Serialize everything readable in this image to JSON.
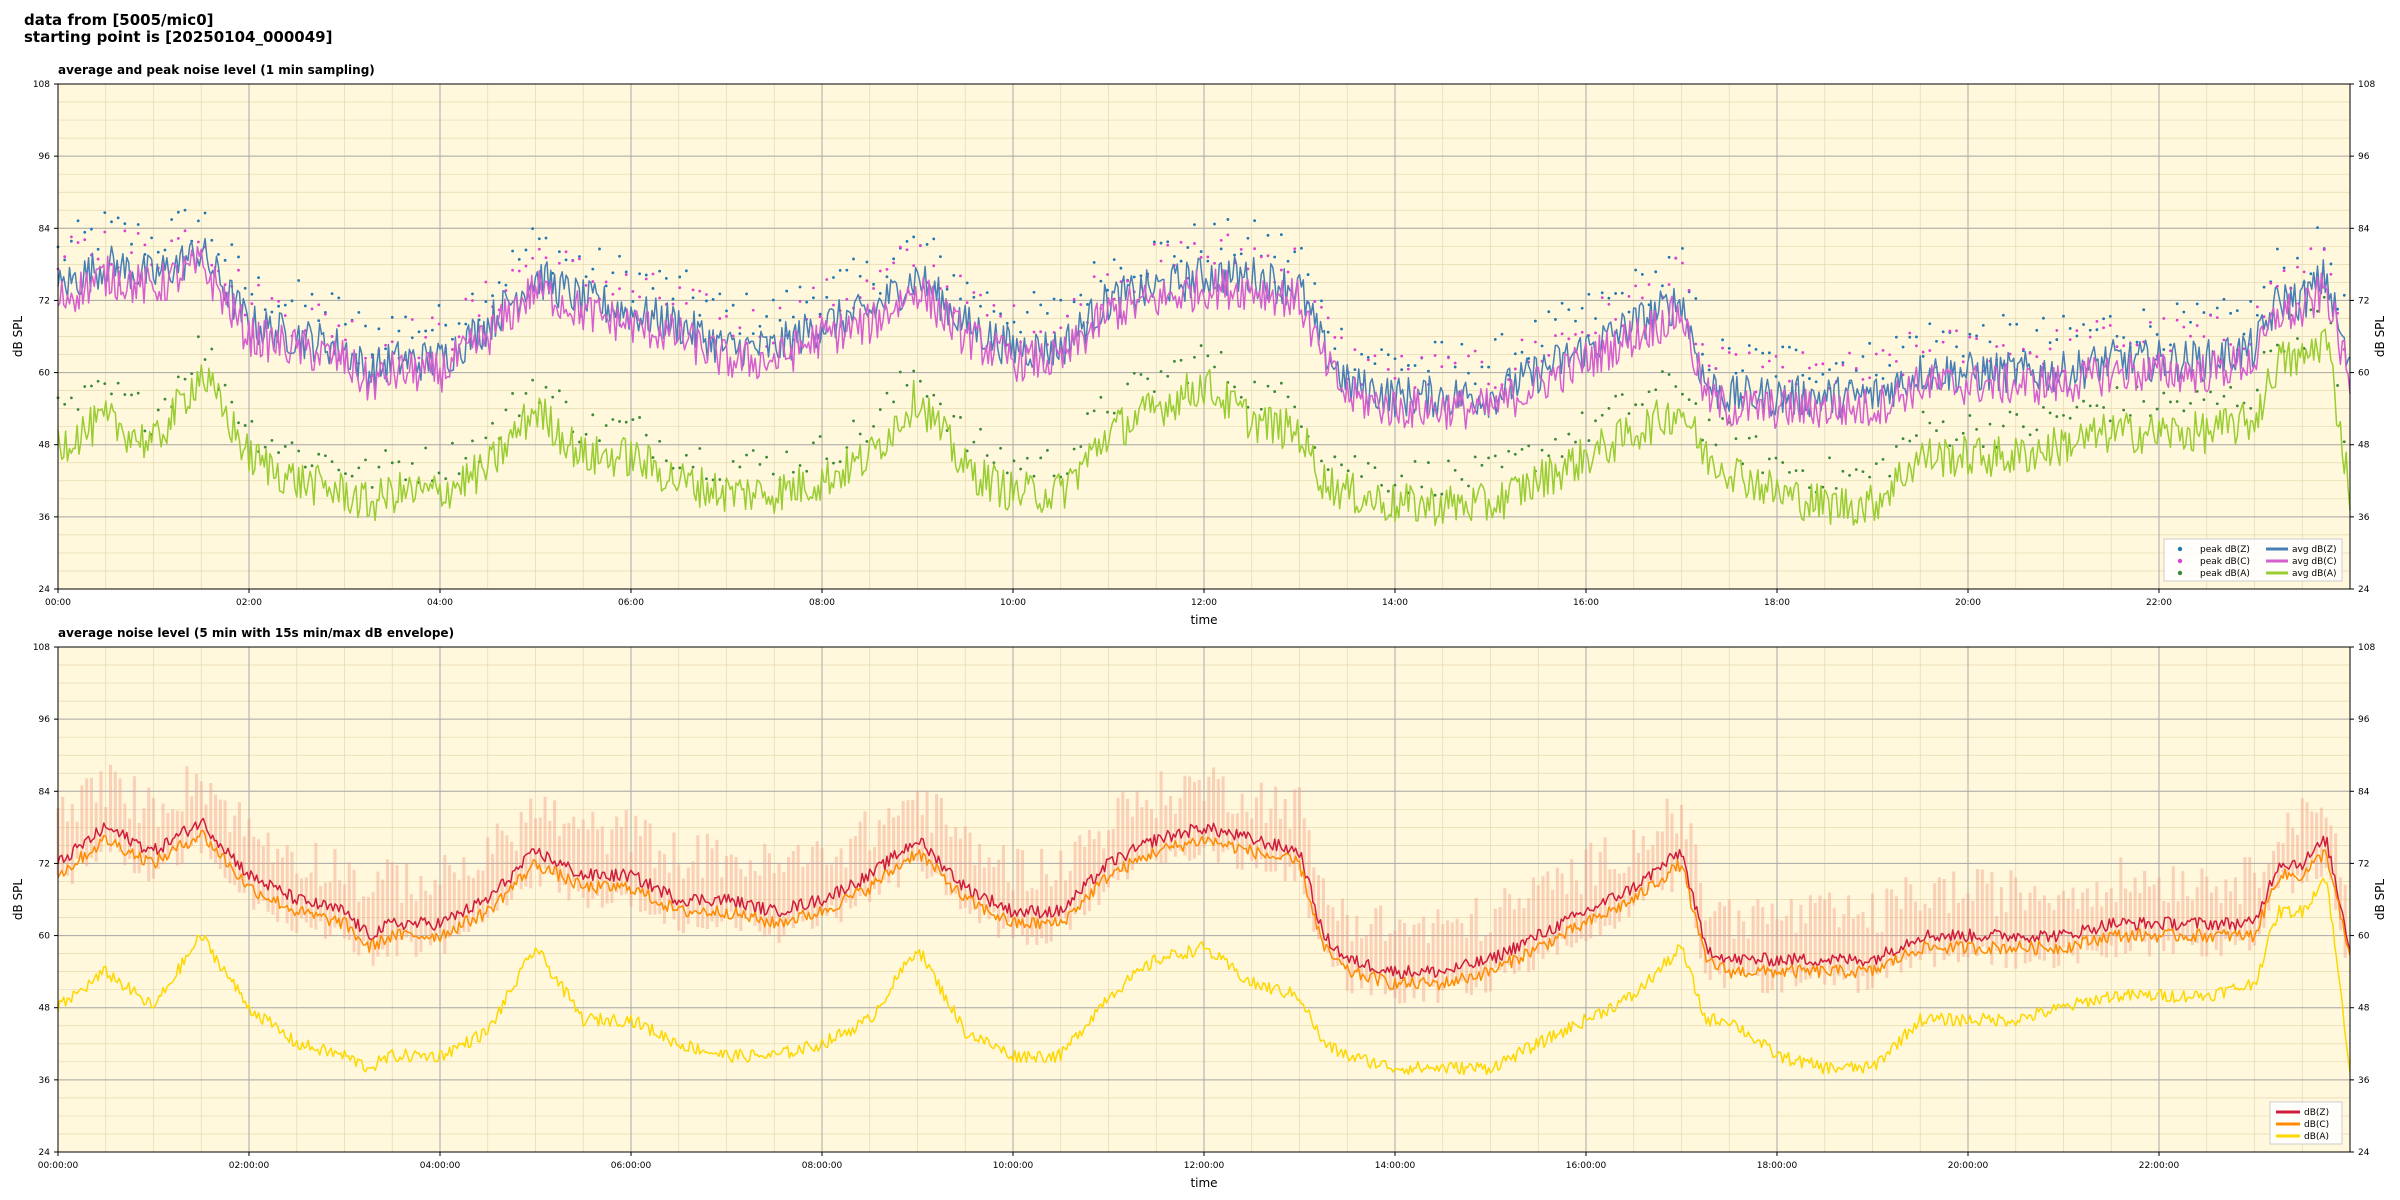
{
  "header": {
    "line1": "data from [5005/mic0]",
    "line2": "starting point is [20250104_000049]"
  },
  "chart_data": [
    {
      "type": "scatter",
      "title": "average and peak noise level (1 min sampling)",
      "xlabel": "time",
      "ylabel": "dB SPL",
      "xlim": [
        0,
        24
      ],
      "ylim": [
        24,
        108
      ],
      "x_ticks": [
        "00:00",
        "02:00",
        "04:00",
        "06:00",
        "08:00",
        "10:00",
        "12:00",
        "14:00",
        "16:00",
        "18:00",
        "20:00",
        "22:00"
      ],
      "y_ticks": [
        24,
        36,
        48,
        60,
        72,
        84,
        96,
        108
      ],
      "grid": true,
      "legend_position": "lower-right",
      "background_color": "#fff8dc",
      "series": [
        {
          "name": "peak dB(Z)",
          "kind": "points",
          "color": "#1f77b4",
          "offset_from": "avg dB(Z)",
          "offset_db": 6
        },
        {
          "name": "peak dB(C)",
          "kind": "points",
          "color": "#e040d0",
          "offset_from": "avg dB(C)",
          "offset_db": 6
        },
        {
          "name": "peak dB(A)",
          "kind": "points",
          "color": "#3a8a3a",
          "offset_from": "avg dB(A)",
          "offset_db": 5
        },
        {
          "name": "avg dB(Z)",
          "kind": "line",
          "color": "#4a7fb5",
          "x": [
            0,
            0.5,
            1,
            1.5,
            2,
            2.5,
            3,
            3.25,
            3.5,
            4,
            4.5,
            5,
            5.5,
            6,
            6.5,
            7,
            7.5,
            8,
            8.5,
            9,
            9.5,
            10,
            10.5,
            11,
            11.5,
            12,
            12.5,
            13,
            13.25,
            13.5,
            14,
            14.5,
            15,
            15.5,
            16,
            16.5,
            17,
            17.25,
            17.5,
            18,
            18.5,
            19,
            19.5,
            20,
            20.5,
            21,
            21.5,
            22,
            22.5,
            23,
            23.25,
            23.5,
            23.75,
            24
          ],
          "y": [
            74,
            78,
            76,
            80,
            68,
            66,
            64,
            60,
            62,
            62,
            68,
            76,
            72,
            70,
            68,
            64,
            64,
            68,
            70,
            76,
            68,
            64,
            64,
            72,
            74,
            76,
            76,
            74,
            64,
            58,
            56,
            56,
            56,
            60,
            64,
            68,
            72,
            58,
            56,
            56,
            56,
            56,
            60,
            60,
            60,
            60,
            62,
            62,
            62,
            64,
            72,
            72,
            76,
            60
          ]
        },
        {
          "name": "avg dB(C)",
          "kind": "line",
          "color": "#d65fd0",
          "x": [
            0,
            0.5,
            1,
            1.5,
            2,
            2.5,
            3,
            3.25,
            3.5,
            4,
            4.5,
            5,
            5.5,
            6,
            6.5,
            7,
            7.5,
            8,
            8.5,
            9,
            9.5,
            10,
            10.5,
            11,
            11.5,
            12,
            12.5,
            13,
            13.25,
            13.5,
            14,
            14.5,
            15,
            15.5,
            16,
            16.5,
            17,
            17.25,
            17.5,
            18,
            18.5,
            19,
            19.5,
            20,
            20.5,
            21,
            21.5,
            22,
            22.5,
            23,
            23.25,
            23.5,
            23.75,
            24
          ],
          "y": [
            72,
            76,
            74,
            78,
            66,
            64,
            62,
            58,
            60,
            60,
            66,
            74,
            70,
            68,
            66,
            62,
            62,
            66,
            68,
            74,
            66,
            62,
            62,
            70,
            72,
            74,
            74,
            72,
            62,
            56,
            54,
            54,
            54,
            58,
            62,
            66,
            70,
            56,
            54,
            54,
            54,
            54,
            58,
            58,
            58,
            58,
            60,
            60,
            60,
            62,
            70,
            70,
            74,
            58
          ]
        },
        {
          "name": "avg dB(A)",
          "kind": "line",
          "color": "#9acd32",
          "x": [
            0,
            0.5,
            1,
            1.5,
            2,
            2.5,
            3,
            3.25,
            3.5,
            4,
            4.5,
            5,
            5.5,
            6,
            6.5,
            7,
            7.5,
            8,
            8.5,
            9,
            9.5,
            10,
            10.5,
            11,
            11.5,
            12,
            12.5,
            13,
            13.25,
            13.5,
            14,
            14.5,
            15,
            15.5,
            16,
            16.5,
            17,
            17.25,
            17.5,
            18,
            18.5,
            19,
            19.5,
            20,
            20.5,
            21,
            21.5,
            22,
            22.5,
            23,
            23.25,
            23.5,
            23.75,
            24
          ],
          "y": [
            48,
            52,
            48,
            60,
            46,
            42,
            40,
            38,
            40,
            40,
            44,
            54,
            46,
            46,
            42,
            40,
            40,
            42,
            46,
            56,
            44,
            40,
            40,
            50,
            54,
            58,
            52,
            50,
            42,
            40,
            38,
            38,
            38,
            42,
            46,
            50,
            54,
            46,
            44,
            40,
            38,
            38,
            46,
            46,
            46,
            48,
            50,
            50,
            50,
            52,
            62,
            62,
            66,
            40
          ]
        }
      ]
    },
    {
      "type": "line",
      "title": "average noise level (5 min with 15s min/max dB envelope)",
      "xlabel": "time",
      "ylabel": "dB SPL",
      "xlim": [
        0,
        24
      ],
      "ylim": [
        24,
        108
      ],
      "x_ticks": [
        "00:00:00",
        "02:00:00",
        "04:00:00",
        "06:00:00",
        "08:00:00",
        "10:00:00",
        "12:00:00",
        "14:00:00",
        "16:00:00",
        "18:00:00",
        "20:00:00",
        "22:00:00"
      ],
      "y_ticks": [
        24,
        36,
        48,
        60,
        72,
        84,
        96,
        108
      ],
      "grid": true,
      "legend_position": "lower-right",
      "background_color": "#fff8dc",
      "envelope": {
        "color": "#f4a08a",
        "opacity": 0.45,
        "spread_db": 8
      },
      "series": [
        {
          "name": "dB(Z)",
          "color": "#d01c3c",
          "x": [
            0,
            0.5,
            1,
            1.5,
            2,
            2.5,
            3,
            3.25,
            3.5,
            4,
            4.5,
            5,
            5.5,
            6,
            6.5,
            7,
            7.5,
            8,
            8.5,
            9,
            9.5,
            10,
            10.5,
            11,
            11.5,
            12,
            12.5,
            13,
            13.25,
            13.5,
            14,
            14.5,
            15,
            15.5,
            16,
            16.5,
            17,
            17.25,
            17.5,
            18,
            18.5,
            19,
            19.5,
            20,
            20.5,
            21,
            21.5,
            22,
            22.5,
            23,
            23.25,
            23.5,
            23.75,
            24
          ],
          "y": [
            72,
            78,
            74,
            79,
            70,
            66,
            64,
            60,
            62,
            62,
            66,
            74,
            70,
            70,
            66,
            66,
            64,
            66,
            70,
            76,
            68,
            64,
            64,
            72,
            76,
            78,
            76,
            74,
            60,
            56,
            54,
            54,
            56,
            60,
            64,
            68,
            74,
            58,
            56,
            56,
            56,
            56,
            60,
            60,
            60,
            60,
            62,
            62,
            62,
            62,
            72,
            72,
            76,
            58
          ]
        },
        {
          "name": "dB(C)",
          "color": "#ff8c00",
          "x": [
            0,
            0.5,
            1,
            1.5,
            2,
            2.5,
            3,
            3.25,
            3.5,
            4,
            4.5,
            5,
            5.5,
            6,
            6.5,
            7,
            7.5,
            8,
            8.5,
            9,
            9.5,
            10,
            10.5,
            11,
            11.5,
            12,
            12.5,
            13,
            13.25,
            13.5,
            14,
            14.5,
            15,
            15.5,
            16,
            16.5,
            17,
            17.25,
            17.5,
            18,
            18.5,
            19,
            19.5,
            20,
            20.5,
            21,
            21.5,
            22,
            22.5,
            23,
            23.25,
            23.5,
            23.75,
            24
          ],
          "y": [
            70,
            76,
            72,
            77,
            68,
            64,
            62,
            58,
            60,
            60,
            64,
            72,
            68,
            68,
            64,
            64,
            62,
            64,
            68,
            74,
            66,
            62,
            62,
            70,
            74,
            76,
            74,
            72,
            58,
            54,
            52,
            52,
            54,
            58,
            62,
            66,
            72,
            56,
            54,
            54,
            54,
            54,
            58,
            58,
            58,
            58,
            60,
            60,
            60,
            60,
            70,
            70,
            74,
            56
          ]
        },
        {
          "name": "dB(A)",
          "color": "#ffd700",
          "x": [
            0,
            0.5,
            1,
            1.5,
            2,
            2.5,
            3,
            3.25,
            3.5,
            4,
            4.5,
            5,
            5.5,
            6,
            6.5,
            7,
            7.5,
            8,
            8.5,
            9,
            9.5,
            10,
            10.5,
            11,
            11.5,
            12,
            12.5,
            13,
            13.25,
            13.5,
            14,
            14.5,
            15,
            15.5,
            16,
            16.5,
            17,
            17.25,
            17.5,
            18,
            18.5,
            19,
            19.5,
            20,
            20.5,
            21,
            21.5,
            22,
            22.5,
            23,
            23.25,
            23.5,
            23.75,
            24
          ],
          "y": [
            48,
            54,
            48,
            60,
            48,
            42,
            40,
            38,
            40,
            40,
            44,
            58,
            46,
            46,
            42,
            40,
            40,
            42,
            46,
            58,
            44,
            40,
            40,
            50,
            56,
            58,
            52,
            50,
            42,
            40,
            38,
            38,
            38,
            42,
            46,
            50,
            58,
            46,
            46,
            40,
            38,
            38,
            46,
            46,
            46,
            48,
            50,
            50,
            50,
            52,
            64,
            64,
            70,
            38
          ]
        }
      ]
    }
  ]
}
